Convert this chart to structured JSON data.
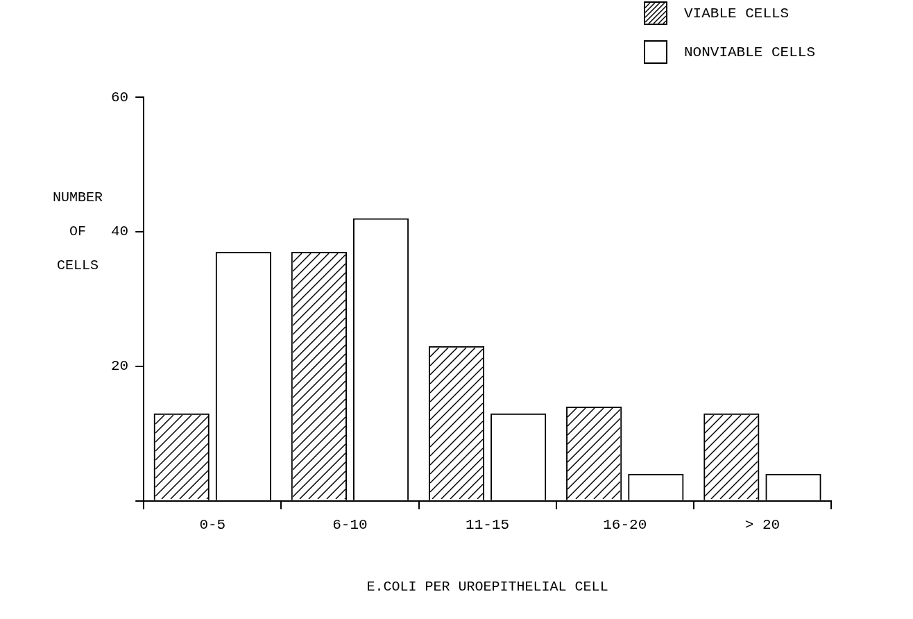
{
  "chart_data": {
    "type": "bar",
    "xlabel": "E.COLI PER UROEPITHELIAL CELL",
    "ylabel": "NUMBER OF CELLS",
    "categories": [
      "0-5",
      "6-10",
      "11-15",
      "16-20",
      "> 20"
    ],
    "series": [
      {
        "name": "VIABLE CELLS",
        "color": "#000000",
        "values": [
          13,
          37,
          23,
          14,
          13
        ]
      },
      {
        "name": "NONVIABLE CELLS",
        "color": "#000000",
        "values": [
          37,
          42,
          13,
          4,
          4
        ]
      }
    ],
    "ylim": [
      0,
      60
    ],
    "yticks": [
      {
        "value": 0,
        "label": null
      },
      20,
      40,
      60
    ],
    "grid": false,
    "legend": "top right"
  }
}
